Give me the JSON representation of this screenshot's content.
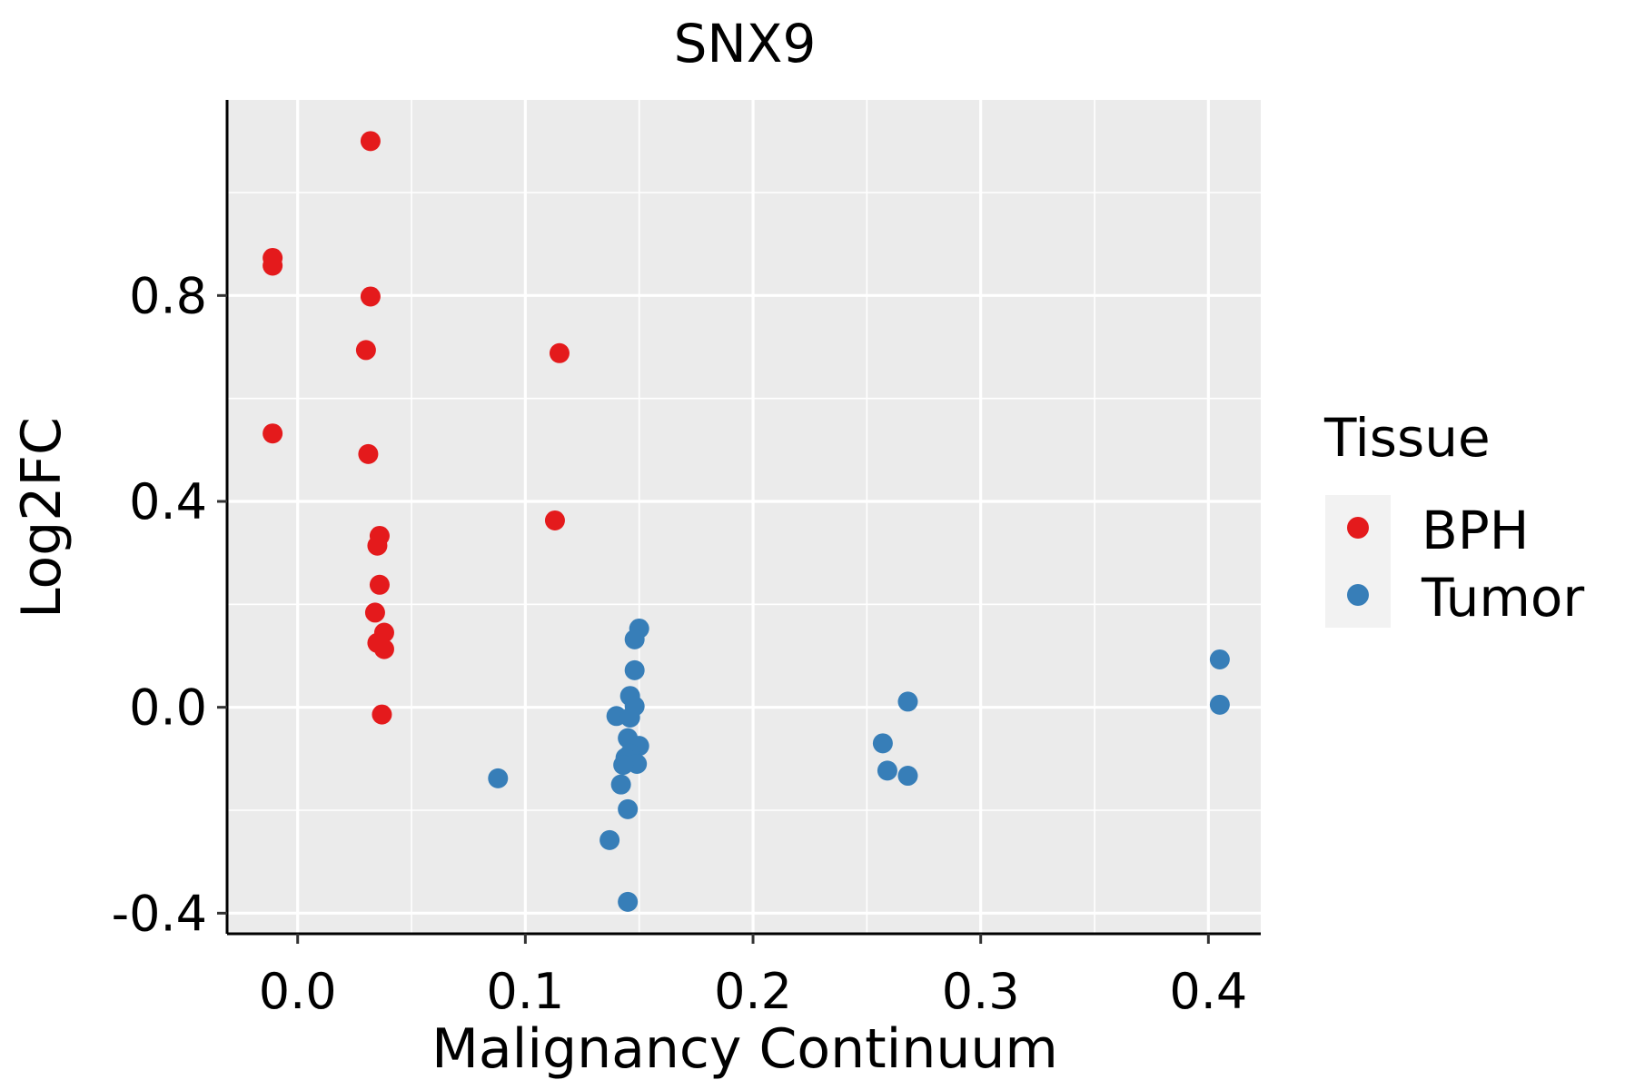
{
  "chart_data": {
    "type": "scatter",
    "title": "SNX9",
    "xlabel": "Malignancy Continuum",
    "ylabel": "Log2FC",
    "xlim": [
      -0.031,
      0.423
    ],
    "ylim": [
      -0.44,
      1.18
    ],
    "xticks": [
      0.0,
      0.1,
      0.2,
      0.3,
      0.4
    ],
    "xtick_labels": [
      "0.0",
      "0.1",
      "0.2",
      "0.3",
      "0.4"
    ],
    "yticks": [
      -0.4,
      0.0,
      0.4,
      0.8
    ],
    "ytick_labels": [
      "-0.4",
      "0.0",
      "0.4",
      "0.8"
    ],
    "grid": true,
    "legend": {
      "title": "Tissue",
      "position": "right",
      "entries": [
        "BPH",
        "Tumor"
      ]
    },
    "series": [
      {
        "name": "BPH",
        "color": "#E41A1C",
        "points": [
          [
            0.032,
            1.1
          ],
          [
            -0.011,
            0.873
          ],
          [
            -0.011,
            0.858
          ],
          [
            0.032,
            0.798
          ],
          [
            0.03,
            0.694
          ],
          [
            0.115,
            0.688
          ],
          [
            -0.011,
            0.532
          ],
          [
            0.031,
            0.492
          ],
          [
            0.113,
            0.363
          ],
          [
            0.036,
            0.333
          ],
          [
            0.035,
            0.314
          ],
          [
            0.036,
            0.238
          ],
          [
            0.034,
            0.184
          ],
          [
            0.038,
            0.145
          ],
          [
            0.035,
            0.125
          ],
          [
            0.038,
            0.113
          ],
          [
            0.037,
            -0.014
          ]
        ]
      },
      {
        "name": "Tumor",
        "color": "#377EB8",
        "points": [
          [
            0.15,
            0.153
          ],
          [
            0.148,
            0.132
          ],
          [
            0.148,
            0.072
          ],
          [
            0.405,
            0.093
          ],
          [
            0.268,
            0.011
          ],
          [
            0.405,
            0.005
          ],
          [
            0.146,
            0.022
          ],
          [
            0.148,
            0.002
          ],
          [
            0.14,
            -0.017
          ],
          [
            0.146,
            -0.02
          ],
          [
            0.145,
            -0.06
          ],
          [
            0.15,
            -0.075
          ],
          [
            0.146,
            -0.09
          ],
          [
            0.144,
            -0.098
          ],
          [
            0.149,
            -0.11
          ],
          [
            0.143,
            -0.112
          ],
          [
            0.257,
            -0.07
          ],
          [
            0.259,
            -0.123
          ],
          [
            0.268,
            -0.133
          ],
          [
            0.088,
            -0.138
          ],
          [
            0.142,
            -0.15
          ],
          [
            0.145,
            -0.198
          ],
          [
            0.137,
            -0.258
          ],
          [
            0.145,
            -0.378
          ]
        ]
      }
    ]
  }
}
